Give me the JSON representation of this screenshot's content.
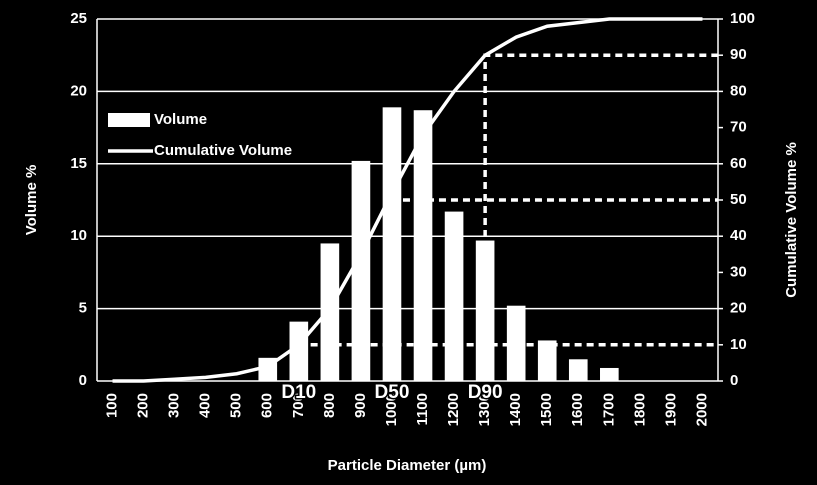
{
  "chart_data": {
    "type": "bar",
    "x_label": "Particle Diameter (µm)",
    "y_label": "Volume %",
    "y2_label": "Cumulative Volume %",
    "categories": [
      "100",
      "200",
      "300",
      "400",
      "500",
      "600",
      "700",
      "800",
      "900",
      "1000",
      "1100",
      "1200",
      "1300",
      "1400",
      "1500",
      "1600",
      "1700",
      "1800",
      "1900",
      "2000"
    ],
    "series": [
      {
        "name": "Volume",
        "type": "bar",
        "color": "#ffffff",
        "values": [
          0,
          0,
          0,
          0,
          0,
          1.6,
          4.1,
          9.5,
          15.2,
          18.9,
          18.7,
          11.7,
          9.7,
          5.2,
          2.8,
          1.5,
          0.9,
          0,
          0,
          0
        ]
      },
      {
        "name": "Cumulative Volume",
        "type": "line",
        "axis": "y2",
        "color": "#ffffff",
        "values": [
          0,
          0,
          0.5,
          1,
          2,
          4,
          10,
          20,
          35,
          52,
          68,
          80,
          90,
          95,
          98,
          99,
          100,
          100,
          100,
          100
        ]
      }
    ],
    "markers": [
      {
        "label": "D10",
        "category": "700",
        "value": 10
      },
      {
        "label": "D50",
        "category": "1000",
        "value": 50
      },
      {
        "label": "D90",
        "category": "1300",
        "value": 90
      }
    ],
    "ylim": [
      0,
      25
    ],
    "yticks": [
      0,
      5,
      10,
      15,
      20,
      25
    ],
    "y2lim": [
      0,
      100
    ],
    "y2ticks": [
      0,
      10,
      20,
      30,
      40,
      50,
      60,
      70,
      80,
      90,
      100
    ],
    "grid": true,
    "legend": "upper-left"
  }
}
